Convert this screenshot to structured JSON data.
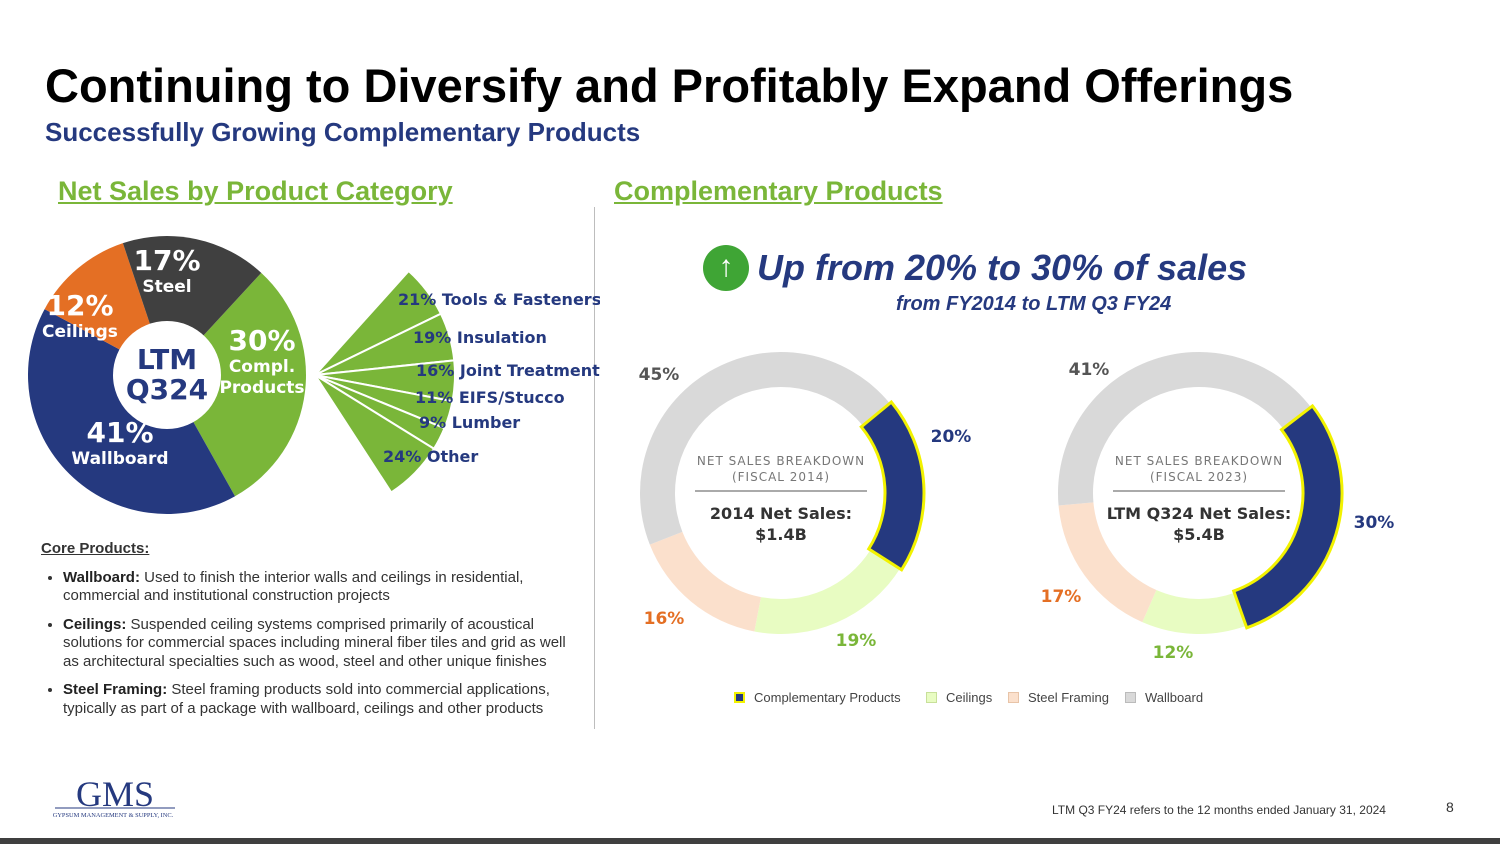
{
  "header": {
    "title": "Continuing to Diversify and Profitably Expand Offerings",
    "subtitle": "Successfully Growing Complementary Products"
  },
  "left_section": {
    "heading": "Net Sales by Product Category",
    "core_products": {
      "heading": "Core Products:",
      "items": [
        {
          "term": "Wallboard:",
          "text": " Used to finish the interior walls and ceilings in residential, commercial and institutional construction projects"
        },
        {
          "term": "Ceilings:",
          "text": " Suspended ceiling systems comprised primarily of acoustical solutions for commercial spaces including mineral fiber tiles and grid as well as architectural specialties such as wood, steel and other unique finishes"
        },
        {
          "term": "Steel Framing:",
          "text": " Steel framing products sold into commercial applications, typically as part of a package with wallboard, ceilings and other products"
        }
      ]
    }
  },
  "right_section": {
    "heading": "Complementary Products",
    "headline": "Up from 20% to 30% of sales",
    "headline_sub": "from FY2014 to LTM Q3 FY24",
    "arrow_icon": "up-arrow"
  },
  "colors": {
    "green": "#7ab639",
    "navy": "#25397f",
    "orange": "#e46f24",
    "dark": "#404040",
    "light_gray": "#d9d9d9",
    "light_green": "#e8fcc2",
    "peach": "#fbe0cc",
    "highlight": "#f2f200"
  },
  "chart_data": [
    {
      "type": "pie",
      "title": "LTM Q324",
      "center_label": [
        "LTM",
        "Q324"
      ],
      "slices": [
        {
          "label": "Compl. Products",
          "label_lines": [
            "Compl.",
            "Products"
          ],
          "value": 30,
          "display": "30%",
          "color": "#7ab639"
        },
        {
          "label": "Wallboard",
          "label_lines": [
            "Wallboard"
          ],
          "value": 41,
          "display": "41%",
          "color": "#25397f"
        },
        {
          "label": "Ceilings",
          "label_lines": [
            "Ceilings"
          ],
          "value": 12,
          "display": "12%",
          "color": "#e46f24"
        },
        {
          "label": "Steel",
          "label_lines": [
            "Steel"
          ],
          "value": 17,
          "display": "17%",
          "color": "#404040"
        }
      ]
    },
    {
      "type": "pie",
      "title": "Complementary Products breakdown",
      "slices": [
        {
          "label": "21% Tools & Fasteners",
          "value": 21
        },
        {
          "label": "19% Insulation",
          "value": 19
        },
        {
          "label": "16% Joint Treatment",
          "value": 16
        },
        {
          "label": "11% EIFS/Stucco",
          "value": 11
        },
        {
          "label": "9% Lumber",
          "value": 9
        },
        {
          "label": "24% Other",
          "value": 24
        }
      ]
    },
    {
      "type": "pie",
      "subtype": "donut",
      "title_lines": [
        "NET SALES BREAKDOWN",
        "(FISCAL 2014)"
      ],
      "center_lines": [
        "2014 Net Sales:",
        "$1.4B"
      ],
      "slices": [
        {
          "label": "Complementary Products",
          "value": 20,
          "display": "20%"
        },
        {
          "label": "Ceilings",
          "value": 19,
          "display": "19%"
        },
        {
          "label": "Steel Framing",
          "value": 16,
          "display": "16%"
        },
        {
          "label": "Wallboard",
          "value": 45,
          "display": "45%"
        }
      ]
    },
    {
      "type": "pie",
      "subtype": "donut",
      "title_lines": [
        "NET SALES BREAKDOWN",
        "(FISCAL 2023)"
      ],
      "center_lines": [
        "LTM Q324 Net Sales:",
        "$5.4B"
      ],
      "slices": [
        {
          "label": "Complementary Products",
          "value": 30,
          "display": "30%"
        },
        {
          "label": "Ceilings",
          "value": 12,
          "display": "12%"
        },
        {
          "label": "Steel Framing",
          "value": 17,
          "display": "17%"
        },
        {
          "label": "Wallboard",
          "value": 41,
          "display": "41%"
        }
      ]
    }
  ],
  "legend": [
    {
      "label": "Complementary Products",
      "color": "#25397f"
    },
    {
      "label": "Ceilings",
      "color": "#e8fcc2"
    },
    {
      "label": "Steel Framing",
      "color": "#fbe0cc"
    },
    {
      "label": "Wallboard",
      "color": "#d9d9d9"
    }
  ],
  "footer": {
    "footnote": "LTM Q3 FY24 refers to the 12 months ended January 31, 2024",
    "page_number": "8",
    "logo_text": "GMS",
    "logo_subtext": "GYPSUM MANAGEMENT & SUPPLY, INC."
  }
}
